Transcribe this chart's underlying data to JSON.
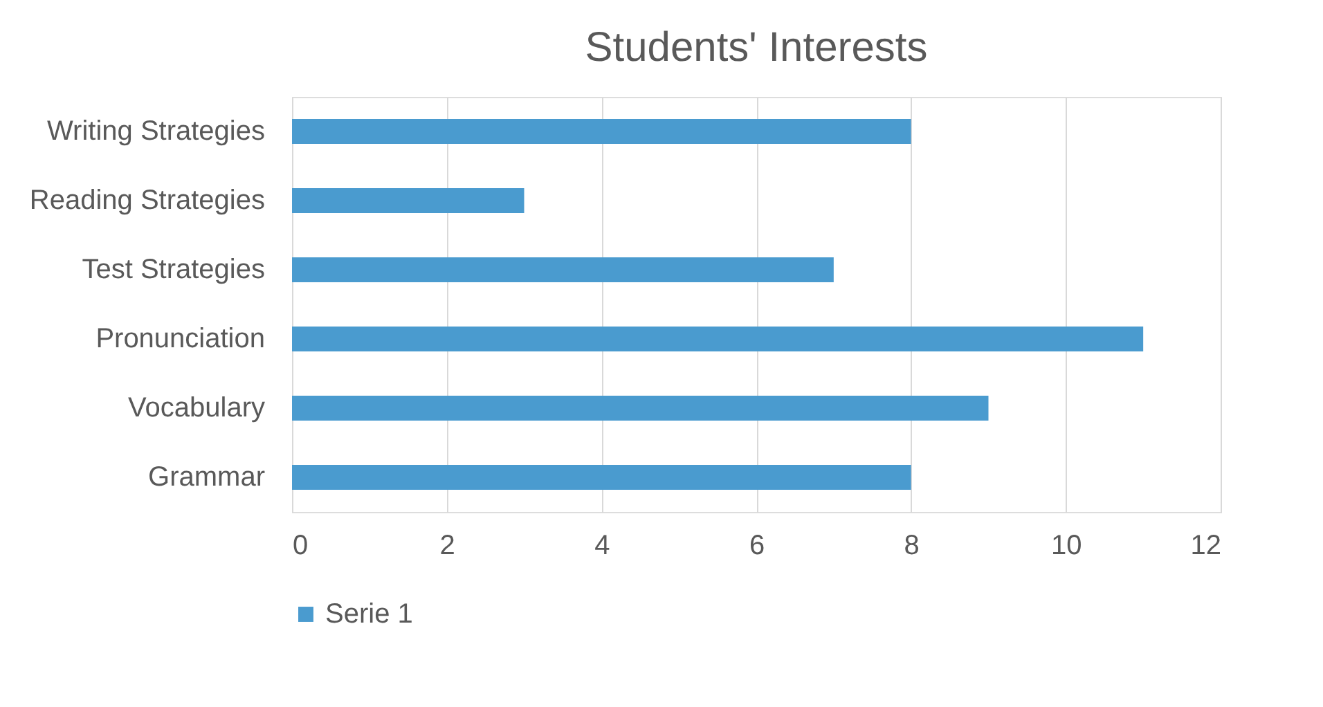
{
  "chart_data": {
    "type": "bar",
    "orientation": "horizontal",
    "title": "Students' Interests",
    "categories": [
      "Writing Strategies",
      "Reading Strategies",
      "Test Strategies",
      "Pronunciation",
      "Vocabulary",
      "Grammar"
    ],
    "series": [
      {
        "name": "Serie 1",
        "color": "#4a9bcf",
        "values": [
          8,
          3,
          7,
          11,
          9,
          8
        ]
      }
    ],
    "xlim": [
      0,
      12
    ],
    "xticks": [
      0,
      2,
      4,
      6,
      8,
      10,
      12
    ],
    "grid": "x",
    "legend": "bottom"
  }
}
